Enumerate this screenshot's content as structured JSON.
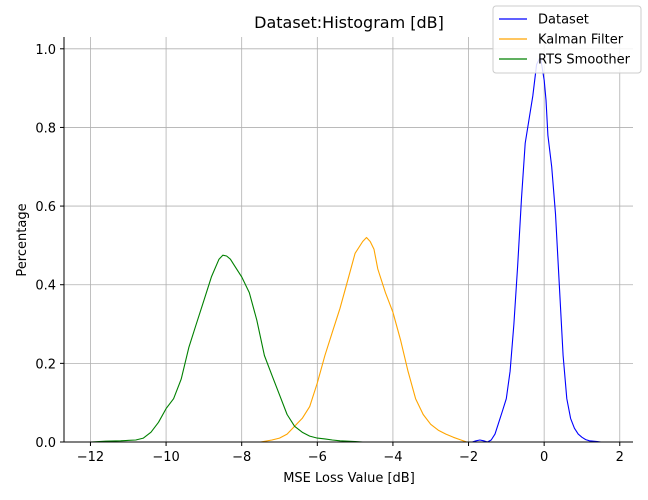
{
  "chart_data": {
    "type": "line",
    "title": "Dataset:Histogram [dB]",
    "xlabel": "MSE Loss Value [dB]",
    "ylabel": "Percentage",
    "xlim": [
      -12.7,
      2.35
    ],
    "ylim": [
      0,
      1.03
    ],
    "xticks": [
      -12,
      -10,
      -8,
      -6,
      -4,
      -2,
      0,
      2
    ],
    "xtick_labels": [
      "−12",
      "−10",
      "−8",
      "−6",
      "−4",
      "−2",
      "0",
      "2"
    ],
    "yticks": [
      0.0,
      0.2,
      0.4,
      0.6,
      0.8,
      1.0
    ],
    "ytick_labels": [
      "0.0",
      "0.2",
      "0.4",
      "0.6",
      "0.8",
      "1.0"
    ],
    "grid": true,
    "legend_position": "top-right",
    "series": [
      {
        "name": "Dataset",
        "color": "#0000ff",
        "x": [
          -2.05,
          -1.9,
          -1.8,
          -1.7,
          -1.6,
          -1.5,
          -1.4,
          -1.3,
          -1.2,
          -1.1,
          -1.0,
          -0.9,
          -0.8,
          -0.7,
          -0.6,
          -0.5,
          -0.4,
          -0.3,
          -0.2,
          -0.1,
          0.0,
          0.05,
          0.1,
          0.2,
          0.3,
          0.4,
          0.5,
          0.6,
          0.7,
          0.8,
          0.9,
          1.0,
          1.1,
          1.2,
          1.3,
          1.4,
          1.5,
          1.65
        ],
        "y": [
          0.0,
          0.0,
          0.003,
          0.005,
          0.003,
          0.0,
          0.005,
          0.02,
          0.05,
          0.08,
          0.11,
          0.18,
          0.3,
          0.45,
          0.62,
          0.76,
          0.82,
          0.88,
          0.96,
          0.98,
          0.92,
          0.87,
          0.78,
          0.7,
          0.58,
          0.4,
          0.22,
          0.11,
          0.06,
          0.035,
          0.02,
          0.012,
          0.006,
          0.003,
          0.002,
          0.001,
          0.0,
          0.0
        ]
      },
      {
        "name": "Kalman Filter",
        "color": "#ffa500",
        "x": [
          -7.5,
          -7.2,
          -7.0,
          -6.8,
          -6.6,
          -6.4,
          -6.2,
          -6.0,
          -5.8,
          -5.6,
          -5.4,
          -5.2,
          -5.0,
          -4.8,
          -4.7,
          -4.6,
          -4.5,
          -4.4,
          -4.2,
          -4.0,
          -3.8,
          -3.6,
          -3.4,
          -3.2,
          -3.0,
          -2.8,
          -2.6,
          -2.4,
          -2.2,
          -2.05
        ],
        "y": [
          0.0,
          0.005,
          0.01,
          0.02,
          0.04,
          0.06,
          0.09,
          0.15,
          0.22,
          0.28,
          0.34,
          0.41,
          0.48,
          0.51,
          0.52,
          0.51,
          0.49,
          0.44,
          0.38,
          0.33,
          0.26,
          0.18,
          0.11,
          0.07,
          0.045,
          0.03,
          0.02,
          0.012,
          0.005,
          0.0
        ]
      },
      {
        "name": "RTS Smoother",
        "color": "#008000",
        "x": [
          -12.0,
          -11.6,
          -11.2,
          -10.8,
          -10.6,
          -10.4,
          -10.2,
          -10.0,
          -9.8,
          -9.6,
          -9.4,
          -9.2,
          -9.0,
          -8.8,
          -8.6,
          -8.5,
          -8.4,
          -8.3,
          -8.2,
          -8.0,
          -7.8,
          -7.6,
          -7.4,
          -7.2,
          -7.0,
          -6.8,
          -6.6,
          -6.4,
          -6.2,
          -6.0,
          -5.8,
          -5.6,
          -5.4,
          -5.2,
          -5.0,
          -4.8
        ],
        "y": [
          0.0,
          0.002,
          0.003,
          0.005,
          0.01,
          0.025,
          0.05,
          0.085,
          0.11,
          0.16,
          0.24,
          0.3,
          0.36,
          0.42,
          0.465,
          0.475,
          0.473,
          0.465,
          0.45,
          0.42,
          0.38,
          0.31,
          0.22,
          0.17,
          0.12,
          0.07,
          0.04,
          0.025,
          0.015,
          0.01,
          0.008,
          0.005,
          0.003,
          0.002,
          0.001,
          0.0
        ]
      }
    ]
  }
}
